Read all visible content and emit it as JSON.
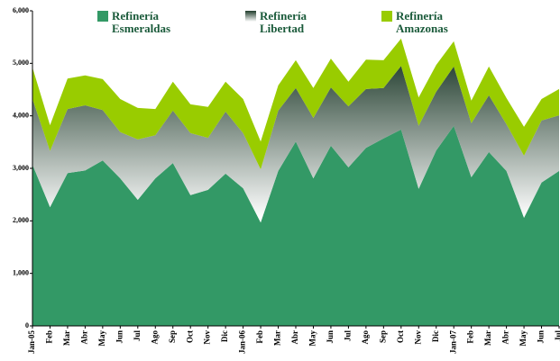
{
  "chart_data": {
    "type": "stacked_area",
    "categories": [
      "Jan-05",
      "Feb",
      "Mar",
      "Abr",
      "May",
      "Jun",
      "Jul",
      "Ago",
      "Sep",
      "Oct",
      "Nov",
      "Dic",
      "Jan-06",
      "Feb",
      "Mar",
      "Abr",
      "May",
      "Jun",
      "Jul",
      "Ago",
      "Sep",
      "Oct",
      "Nov",
      "Dic",
      "Jan-07",
      "Feb",
      "Mar",
      "Abr",
      "May",
      "Jun",
      "Jul"
    ],
    "series": [
      {
        "name": "Refinería Esmeraldas",
        "color": "#339966",
        "values": [
          3070,
          2260,
          2910,
          2960,
          3150,
          2810,
          2400,
          2810,
          3100,
          2490,
          2590,
          2900,
          2620,
          1970,
          2950,
          3510,
          2810,
          3430,
          3020,
          3390,
          3570,
          3740,
          2610,
          3340,
          3810,
          2830,
          3310,
          2950,
          2060,
          2730,
          2950
        ]
      },
      {
        "name": "Refinería Libertad",
        "color": "#1f3b2b",
        "values": [
          1250,
          1070,
          1220,
          1240,
          960,
          880,
          1150,
          820,
          1000,
          1180,
          990,
          1180,
          1050,
          1010,
          1150,
          1020,
          1150,
          1110,
          1160,
          1120,
          960,
          1210,
          1200,
          1120,
          1130,
          1030,
          1080,
          890,
          1180,
          1180,
          1060
        ]
      },
      {
        "name": "Refinería Amazonas",
        "color": "#99cc00",
        "values": [
          600,
          490,
          580,
          570,
          590,
          630,
          600,
          500,
          550,
          550,
          590,
          570,
          650,
          530,
          480,
          530,
          570,
          550,
          470,
          560,
          530,
          520,
          540,
          510,
          480,
          430,
          550,
          500,
          550,
          410,
          500
        ]
      }
    ],
    "ylim": [
      0,
      6000
    ],
    "yticks": [
      0,
      {
        "value": 1000,
        "label": "1,000"
      },
      {
        "value": 2000,
        "label": "2,000"
      },
      {
        "value": 3000,
        "label": "3,000"
      },
      {
        "value": 4000,
        "label": "4,000"
      },
      {
        "value": 5000,
        "label": "5,000"
      },
      {
        "value": 6000,
        "label": "6,000"
      }
    ],
    "grid": false
  }
}
